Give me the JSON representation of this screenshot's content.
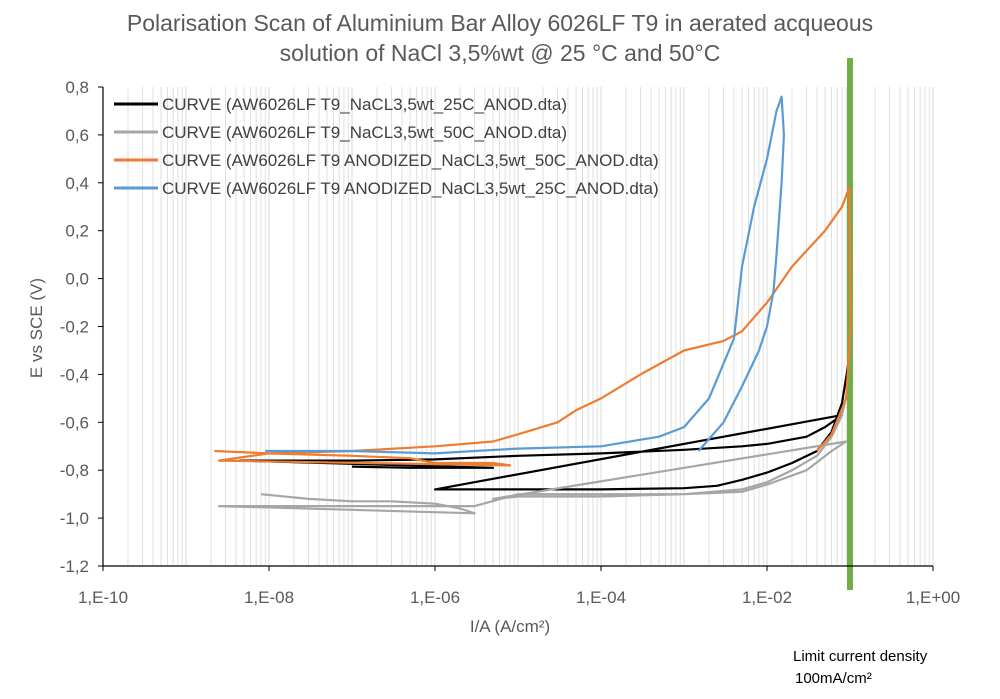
{
  "title_line1": "Polarisation Scan of Aluminium Bar Alloy 6026LF T9 in aerated acqueous",
  "title_line2": "solution of NaCl 3,5%wt @ 25 °C and 50°C",
  "note_line1": "Limit current density",
  "note_line2": "100mA/cm²",
  "colors": {
    "black": "#000000",
    "grey": "#A6A6A6",
    "orange": "#ED7D31",
    "blue": "#5B9BD5",
    "green": "#70AD47",
    "grid": "#D9D9D9",
    "axis": "#000000"
  },
  "chart_data": {
    "type": "line",
    "title": "Polarisation Scan of Aluminium Bar Alloy 6026LF T9 in aerated acqueous solution of NaCl 3,5%wt @ 25 °C and 50°C",
    "xlabel": "I/A (A/cm²)",
    "ylabel": "E vs SCE (V)",
    "x_scale": "log",
    "xlim": [
      1e-10,
      1
    ],
    "ylim": [
      -1.2,
      0.8
    ],
    "x_tick_labels": [
      "1,E-10",
      "1,E-08",
      "1,E-06",
      "1,E-04",
      "1,E-02",
      "1,E+00"
    ],
    "y_tick_labels": [
      "0,8",
      "0,6",
      "0,4",
      "0,2",
      "0,0",
      "-0,2",
      "-0,4",
      "-0,6",
      "-0,8",
      "-1,0",
      "-1,2"
    ],
    "grid": "vertical log grid on",
    "legend_position": "top-left",
    "limit_line": {
      "x": 0.1,
      "label": "Limit current density 100mA/cm²"
    },
    "series": [
      {
        "name": "CURVE (AW6026LF T9_NaCL3,5wt_25C_ANOD.dta)",
        "color": "#000000",
        "x": [
          1e-07,
          5e-07,
          1e-06,
          2e-06,
          3e-06,
          5e-06,
          4.5e-09,
          1e-08,
          1e-07,
          1e-06,
          1e-05,
          0.0001,
          0.001,
          0.005,
          0.01,
          0.03,
          0.05,
          0.08,
          1e-06,
          3e-06,
          1e-05,
          0.0001,
          0.001,
          0.0025,
          0.005,
          0.01,
          0.02,
          0.04,
          0.06,
          0.08,
          0.095
        ],
        "y": [
          -0.785,
          -0.79,
          -0.79,
          -0.79,
          -0.79,
          -0.79,
          -0.76,
          -0.76,
          -0.76,
          -0.755,
          -0.74,
          -0.73,
          -0.715,
          -0.7,
          -0.69,
          -0.66,
          -0.62,
          -0.57,
          -0.88,
          -0.88,
          -0.88,
          -0.88,
          -0.875,
          -0.865,
          -0.84,
          -0.81,
          -0.77,
          -0.72,
          -0.64,
          -0.52,
          -0.36
        ]
      },
      {
        "name": "CURVE (AW6026LF T9_NaCL3,5wt_50C_ANOD.dta)",
        "color": "#A6A6A6",
        "x": [
          8e-09,
          3e-08,
          1e-07,
          3e-07,
          1e-06,
          2e-06,
          3e-06,
          2.5e-09,
          1e-08,
          1e-07,
          1e-06,
          2e-06,
          3e-06,
          1e-05,
          0.0001,
          0.001,
          0.005,
          0.01,
          0.03,
          0.06,
          0.09,
          5e-06,
          1e-05,
          0.0001,
          0.001,
          0.005,
          0.01,
          0.02,
          0.04,
          0.06,
          0.08,
          0.09
        ],
        "y": [
          -0.9,
          -0.92,
          -0.93,
          -0.93,
          -0.94,
          -0.96,
          -0.98,
          -0.95,
          -0.95,
          -0.95,
          -0.95,
          -0.95,
          -0.95,
          -0.9,
          -0.9,
          -0.9,
          -0.89,
          -0.86,
          -0.8,
          -0.72,
          -0.68,
          -0.92,
          -0.91,
          -0.91,
          -0.9,
          -0.88,
          -0.85,
          -0.8,
          -0.74,
          -0.66,
          -0.57,
          -0.49
        ]
      },
      {
        "name": "CURVE (AW6026LF T9 ANODIZED_NaCL3,5wt_50C_ANOD.dta)",
        "color": "#ED7D31",
        "x": [
          2.2e-09,
          1e-08,
          1e-07,
          5e-07,
          1e-06,
          5e-06,
          8e-06,
          2.5e-09,
          1e-08,
          1e-07,
          1e-06,
          5e-06,
          1e-05,
          3e-05,
          5e-05,
          0.0001,
          0.0003,
          0.001,
          0.003,
          0.005,
          0.01,
          0.02,
          0.05,
          0.08,
          0.098,
          0.1,
          0.102,
          0.09,
          0.06,
          0.04
        ],
        "y": [
          -0.72,
          -0.73,
          -0.74,
          -0.75,
          -0.77,
          -0.77,
          -0.78,
          -0.76,
          -0.73,
          -0.72,
          -0.7,
          -0.68,
          -0.65,
          -0.6,
          -0.55,
          -0.5,
          -0.4,
          -0.3,
          -0.26,
          -0.22,
          -0.1,
          0.05,
          0.2,
          0.3,
          0.38,
          0.1,
          -0.2,
          -0.5,
          -0.65,
          -0.72
        ]
      },
      {
        "name": "CURVE (AW6026LF T9 ANODIZED_NaCL3,5wt_25C_ANOD.dta)",
        "color": "#5B9BD5",
        "x": [
          9e-09,
          1e-07,
          1e-06,
          3e-06,
          1e-05,
          0.0001,
          0.0005,
          0.001,
          0.002,
          0.004,
          0.005,
          0.007,
          0.01,
          0.013,
          0.015,
          0.016,
          0.015,
          0.013,
          0.012,
          0.01,
          0.008,
          0.005,
          0.003,
          0.0015
        ],
        "y": [
          -0.72,
          -0.72,
          -0.73,
          -0.72,
          -0.71,
          -0.7,
          -0.66,
          -0.62,
          -0.5,
          -0.25,
          0.05,
          0.3,
          0.5,
          0.7,
          0.76,
          0.6,
          0.4,
          0.1,
          -0.05,
          -0.2,
          -0.3,
          -0.45,
          -0.6,
          -0.72
        ]
      }
    ]
  }
}
